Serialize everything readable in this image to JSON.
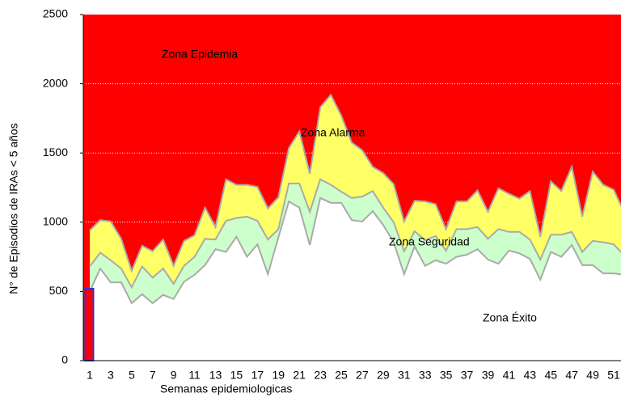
{
  "chart_data": {
    "type": "channel",
    "ylabel": "N° de Episodios  de IRAs < 5 años",
    "xlabel": "Semanas epidemiologicas",
    "annotations": [
      "Zona Epidemia",
      "Zona Alarma",
      "Zona Seguridad",
      "Zona Éxito"
    ],
    "categories": [
      1,
      null,
      3,
      null,
      5,
      null,
      7,
      null,
      9,
      null,
      11,
      null,
      13,
      null,
      15,
      null,
      17,
      null,
      19,
      null,
      21,
      null,
      23,
      null,
      25,
      null,
      27,
      null,
      29,
      null,
      31,
      null,
      33,
      null,
      35,
      null,
      37,
      null,
      39,
      null,
      41,
      null,
      43,
      null,
      45,
      null,
      47,
      null,
      49,
      null,
      51,
      null
    ],
    "top_color": "#ff0000",
    "series": [
      {
        "color": "#ffff66",
        "values": [
          940,
          1015,
          1005,
          880,
          650,
          830,
          790,
          875,
          685,
          865,
          905,
          1105,
          965,
          1310,
          1270,
          1270,
          1255,
          1100,
          1180,
          1535,
          1655,
          1350,
          1830,
          1920,
          1770,
          1575,
          1520,
          1400,
          1355,
          1275,
          1005,
          1155,
          1150,
          1130,
          950,
          1150,
          1150,
          1230,
          1075,
          1245,
          1205,
          1170,
          1225,
          895,
          1295,
          1225,
          1400,
          1040,
          1365,
          1270,
          1235,
          1070
        ]
      },
      {
        "color": "#ccffcc",
        "values": [
          680,
          780,
          725,
          665,
          530,
          680,
          600,
          665,
          555,
          685,
          750,
          880,
          875,
          1010,
          1030,
          1040,
          1010,
          875,
          950,
          1280,
          1280,
          1075,
          1310,
          1270,
          1220,
          1175,
          1185,
          1225,
          1105,
          1000,
          790,
          935,
          870,
          900,
          795,
          950,
          950,
          965,
          880,
          950,
          930,
          930,
          875,
          730,
          910,
          910,
          930,
          785,
          865,
          855,
          840,
          760
        ]
      },
      {
        "color": "#ffffff",
        "values": [
          500,
          665,
          565,
          565,
          415,
          480,
          415,
          475,
          445,
          570,
          620,
          690,
          805,
          785,
          895,
          750,
          840,
          625,
          890,
          1150,
          1105,
          835,
          1175,
          1140,
          1140,
          1015,
          1005,
          1080,
          980,
          855,
          625,
          825,
          685,
          725,
          700,
          750,
          765,
          805,
          730,
          700,
          795,
          775,
          735,
          585,
          785,
          750,
          835,
          690,
          690,
          630,
          630,
          620
        ]
      }
    ],
    "bar": {
      "color": "#ff0000",
      "edge_color": "#3333cc",
      "values": [
        520
      ]
    },
    "line_color": "#aaaaaa",
    "ylim": [
      0,
      2500
    ],
    "yticks": [
      0,
      500,
      1000,
      1500,
      2000,
      2500
    ],
    "grid": true
  }
}
